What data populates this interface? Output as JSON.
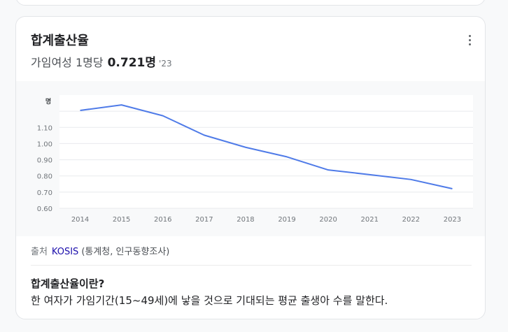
{
  "card": {
    "title": "합계출산율",
    "metric_label": "가임여성 1명당",
    "metric_value": "0.721명",
    "metric_year": "'23"
  },
  "chart_data": {
    "type": "line",
    "unit_label": "명",
    "x": [
      "2014",
      "2015",
      "2016",
      "2017",
      "2018",
      "2019",
      "2020",
      "2021",
      "2022",
      "2023"
    ],
    "series": [
      {
        "values": [
          1.205,
          1.239,
          1.172,
          1.052,
          0.977,
          0.918,
          0.837,
          0.808,
          0.778,
          0.721
        ]
      }
    ],
    "y_ticks": [
      "0.60",
      "0.70",
      "0.80",
      "0.90",
      "1.00",
      "1.10"
    ],
    "ylim": [
      0.6,
      1.3
    ],
    "grid": true,
    "line_color": "#4f7be8"
  },
  "source": {
    "label": "출처",
    "link": "KOSIS",
    "detail": "(통계청, 인구동향조사)"
  },
  "definition": {
    "title": "합계출산율이란?",
    "body": "한 여자가 가임기간(15~49세)에 낳을 것으로 기대되는 평균 출생아 수를 말한다."
  }
}
